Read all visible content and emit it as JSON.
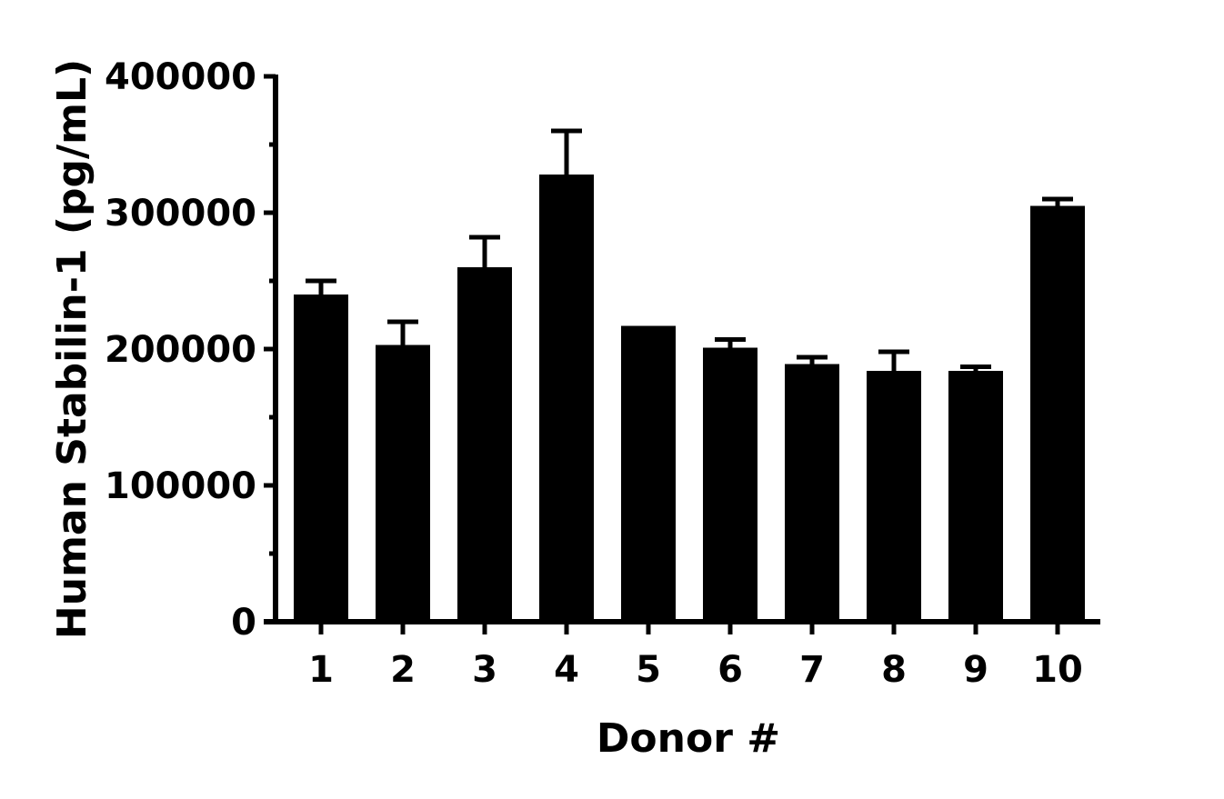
{
  "chart_data": {
    "type": "bar",
    "title": "",
    "xlabel": "Donor #",
    "ylabel": "Human Stabilin-1 (pg/mL)",
    "ylim": [
      0,
      400000
    ],
    "yticks": [
      "0",
      "100000",
      "200000",
      "300000",
      "400000"
    ],
    "categories": [
      "1",
      "2",
      "3",
      "4",
      "5",
      "6",
      "7",
      "8",
      "9",
      "10"
    ],
    "values": [
      240000,
      203000,
      260000,
      328000,
      217000,
      201000,
      189000,
      184000,
      184000,
      305000
    ],
    "errors": [
      10000,
      17000,
      22000,
      32000,
      0,
      6000,
      5000,
      14000,
      3000,
      5000
    ],
    "bar_color": "#000000",
    "grid": false
  }
}
